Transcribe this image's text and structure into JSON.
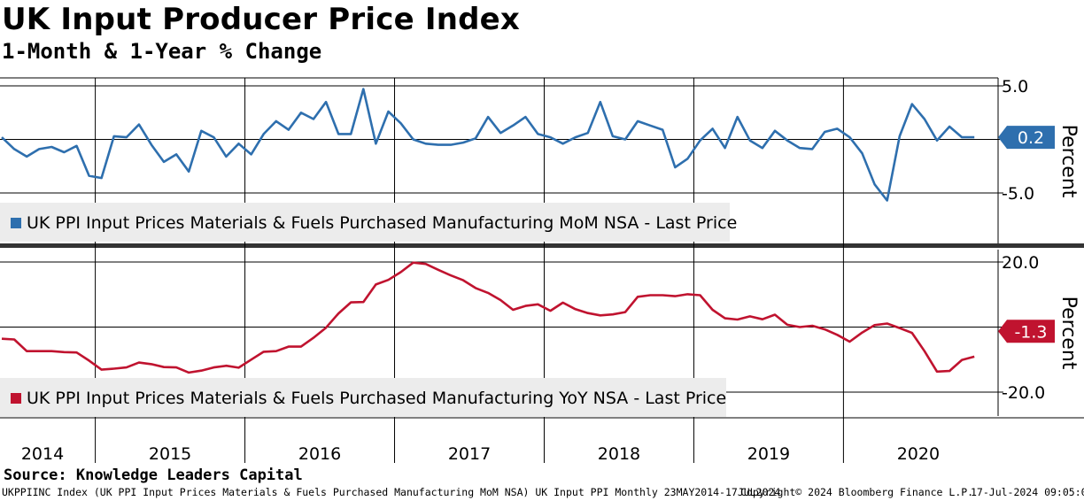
{
  "header": {
    "title": "UK Input Producer Price Index",
    "subtitle": "1-Month & 1-Year % Change"
  },
  "source": "Source: Knowledge Leaders Capital",
  "footer": {
    "ticker": "UKPPIINC Index (UK PPI Input Prices Materials & Fuels Purchased Manufacturing MoM NSA) UK Input PPI  Monthly 23MAY2014-17JUL2024",
    "copyright": "Copyright© 2024 Bloomberg Finance L.P.",
    "timestamp": "17-Jul-2024 09:05:08"
  },
  "colors": {
    "mom": "#2e6fae",
    "yoy": "#c0132f",
    "legend_bg": "#ececec",
    "divider": "#333333"
  },
  "chart_data": [
    {
      "type": "line",
      "panel": "top",
      "series": [
        {
          "name": "UK PPI Input Prices Materials & Fuels Purchased Manufacturing MoM NSA - Last Price",
          "x": [
            "2014-05",
            "2014-06",
            "2014-07",
            "2014-08",
            "2014-09",
            "2014-10",
            "2014-11",
            "2014-12",
            "2015-01",
            "2015-02",
            "2015-03",
            "2015-04",
            "2015-05",
            "2015-06",
            "2015-07",
            "2015-08",
            "2015-09",
            "2015-10",
            "2015-11",
            "2015-12",
            "2016-01",
            "2016-02",
            "2016-03",
            "2016-04",
            "2016-05",
            "2016-06",
            "2016-07",
            "2016-08",
            "2016-09",
            "2016-10",
            "2016-11",
            "2016-12",
            "2017-01",
            "2017-02",
            "2017-03",
            "2017-04",
            "2017-05",
            "2017-06",
            "2017-07",
            "2017-08",
            "2017-09",
            "2017-10",
            "2017-11",
            "2017-12",
            "2018-01",
            "2018-02",
            "2018-03",
            "2018-04",
            "2018-05",
            "2018-06",
            "2018-07",
            "2018-08",
            "2018-09",
            "2018-10",
            "2018-11",
            "2018-12",
            "2019-01",
            "2019-02",
            "2019-03",
            "2019-04",
            "2019-05",
            "2019-06",
            "2019-07",
            "2019-08",
            "2019-09",
            "2019-10",
            "2019-11",
            "2019-12",
            "2020-01",
            "2020-02",
            "2020-03",
            "2020-04",
            "2020-05",
            "2020-06",
            "2020-07",
            "2020-08",
            "2020-09",
            "2020-10",
            "2020-11"
          ],
          "values": [
            0.2,
            -0.9,
            -1.6,
            -0.9,
            -0.7,
            -1.2,
            -0.6,
            -3.4,
            -3.6,
            0.3,
            0.2,
            1.4,
            -0.5,
            -2.1,
            -1.4,
            -3.0,
            0.8,
            0.2,
            -1.6,
            -0.4,
            -1.4,
            0.5,
            1.7,
            0.9,
            2.5,
            1.9,
            3.5,
            0.5,
            0.5,
            4.7,
            -0.4,
            2.6,
            1.5,
            0.0,
            -0.4,
            -0.5,
            -0.5,
            -0.3,
            0.1,
            2.1,
            0.6,
            1.3,
            2.1,
            0.5,
            0.2,
            -0.4,
            0.2,
            0.6,
            3.5,
            0.3,
            0.0,
            1.7,
            1.3,
            0.9,
            -2.6,
            -1.8,
            -0.1,
            1.0,
            -0.8,
            2.1,
            -0.1,
            -0.8,
            0.8,
            -0.1,
            -0.8,
            -0.9,
            0.7,
            1.0,
            0.2,
            -1.3,
            -4.2,
            -5.7,
            0.3,
            3.3,
            1.9,
            -0.1,
            1.2,
            0.2,
            0.2
          ]
        }
      ],
      "xlabel": "",
      "ylabel": "Percent",
      "ylim": [
        -8.5,
        5.5
      ],
      "yticks": [
        "5.0",
        "-5.0"
      ],
      "last_value_label": "0.2"
    },
    {
      "type": "line",
      "panel": "bottom",
      "series": [
        {
          "name": "UK PPI Input Prices Materials & Fuels Purchased Manufacturing YoY NSA - Last Price",
          "x": [
            "2014-05",
            "2014-06",
            "2014-07",
            "2014-08",
            "2014-09",
            "2014-10",
            "2014-11",
            "2014-12",
            "2015-01",
            "2015-02",
            "2015-03",
            "2015-04",
            "2015-05",
            "2015-06",
            "2015-07",
            "2015-08",
            "2015-09",
            "2015-10",
            "2015-11",
            "2015-12",
            "2016-01",
            "2016-02",
            "2016-03",
            "2016-04",
            "2016-05",
            "2016-06",
            "2016-07",
            "2016-08",
            "2016-09",
            "2016-10",
            "2016-11",
            "2016-12",
            "2017-01",
            "2017-02",
            "2017-03",
            "2017-04",
            "2017-05",
            "2017-06",
            "2017-07",
            "2017-08",
            "2017-09",
            "2017-10",
            "2017-11",
            "2017-12",
            "2018-01",
            "2018-02",
            "2018-03",
            "2018-04",
            "2018-05",
            "2018-06",
            "2018-07",
            "2018-08",
            "2018-09",
            "2018-10",
            "2018-11",
            "2018-12",
            "2019-01",
            "2019-02",
            "2019-03",
            "2019-04",
            "2019-05",
            "2019-06",
            "2019-07",
            "2019-08",
            "2019-09",
            "2019-10",
            "2019-11",
            "2019-12",
            "2020-01",
            "2020-02",
            "2020-03",
            "2020-04",
            "2020-05",
            "2020-06",
            "2020-07",
            "2020-08",
            "2020-09",
            "2020-10",
            "2020-11"
          ],
          "values": [
            -3.6,
            -3.8,
            -7.4,
            -7.4,
            -7.4,
            -7.7,
            -7.8,
            -10.3,
            -13.1,
            -12.8,
            -12.4,
            -10.9,
            -11.4,
            -12.3,
            -12.4,
            -14.0,
            -13.4,
            -12.4,
            -11.9,
            -12.5,
            -10.0,
            -7.6,
            -7.4,
            -6.0,
            -6.0,
            -3.3,
            -0.2,
            4.2,
            7.6,
            7.7,
            13.1,
            14.5,
            16.9,
            19.8,
            19.4,
            17.6,
            15.9,
            14.4,
            12.0,
            10.5,
            8.3,
            5.3,
            6.5,
            7.0,
            5.0,
            7.5,
            5.5,
            4.3,
            3.6,
            3.9,
            4.6,
            9.3,
            9.8,
            9.8,
            9.5,
            10.1,
            9.8,
            5.3,
            2.7,
            2.3,
            3.3,
            2.4,
            3.8,
            0.7,
            0.0,
            0.4,
            -0.7,
            -2.4,
            -4.5,
            -1.7,
            0.6,
            1.1,
            -0.3,
            -1.8,
            -7.4,
            -13.7,
            -13.5,
            -10.1,
            -9.1
          ],
          "extra_tail": [
            -9.1,
            -6.9,
            -1.3
          ]
        }
      ],
      "xlabel": "",
      "ylabel": "Percent",
      "ylim": [
        -26.5,
        21.5
      ],
      "yticks": [
        "20.0",
        "-20.0"
      ],
      "last_value_label": "-1.3"
    }
  ],
  "x_axis": {
    "year_labels": [
      "2014",
      "2015",
      "2016",
      "2017",
      "2018",
      "2019",
      "2020"
    ]
  }
}
